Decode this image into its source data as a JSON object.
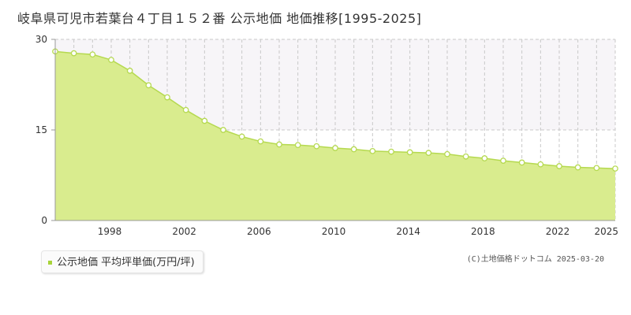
{
  "colors": {
    "area_fill": "#d9ec8e",
    "line": "#b5d94f",
    "marker_fill": "#ffffff",
    "marker_stroke": "#b5d94f",
    "grid": "#c8c8c8",
    "upper_band": "#f7f5f8",
    "legend_swatch": "#a8d43a"
  },
  "chart_data": {
    "type": "area",
    "title": "岐阜県可児市若葉台４丁目１５２番 公示地価 地価推移[1995-2025]",
    "xlabel": "",
    "ylabel": "",
    "ylim": [
      0,
      30
    ],
    "yticks": [
      "0",
      "15",
      "30"
    ],
    "xlim": [
      1995,
      2025
    ],
    "xticks": [
      "1998",
      "2002",
      "2006",
      "2010",
      "2014",
      "2018",
      "2022",
      "2025"
    ],
    "grid": true,
    "legend_position": "bottom-left",
    "series": [
      {
        "name": "公示地価 平均坪単価(万円/坪)",
        "x": [
          1995,
          1996,
          1997,
          1998,
          1999,
          2000,
          2001,
          2002,
          2003,
          2004,
          2005,
          2006,
          2007,
          2008,
          2009,
          2010,
          2011,
          2012,
          2013,
          2014,
          2015,
          2016,
          2017,
          2018,
          2019,
          2020,
          2021,
          2022,
          2023,
          2024,
          2025
        ],
        "values": [
          28.0,
          27.7,
          27.5,
          26.6,
          24.8,
          22.4,
          20.4,
          18.3,
          16.5,
          15.0,
          13.9,
          13.1,
          12.6,
          12.5,
          12.3,
          12.0,
          11.8,
          11.5,
          11.4,
          11.3,
          11.2,
          11.0,
          10.6,
          10.3,
          9.9,
          9.6,
          9.3,
          9.0,
          8.8,
          8.7,
          8.6
        ]
      }
    ]
  },
  "legend": {
    "label": "公示地価 平均坪単価(万円/坪)"
  },
  "copyright": "(C)土地価格ドットコム 2025-03-20"
}
